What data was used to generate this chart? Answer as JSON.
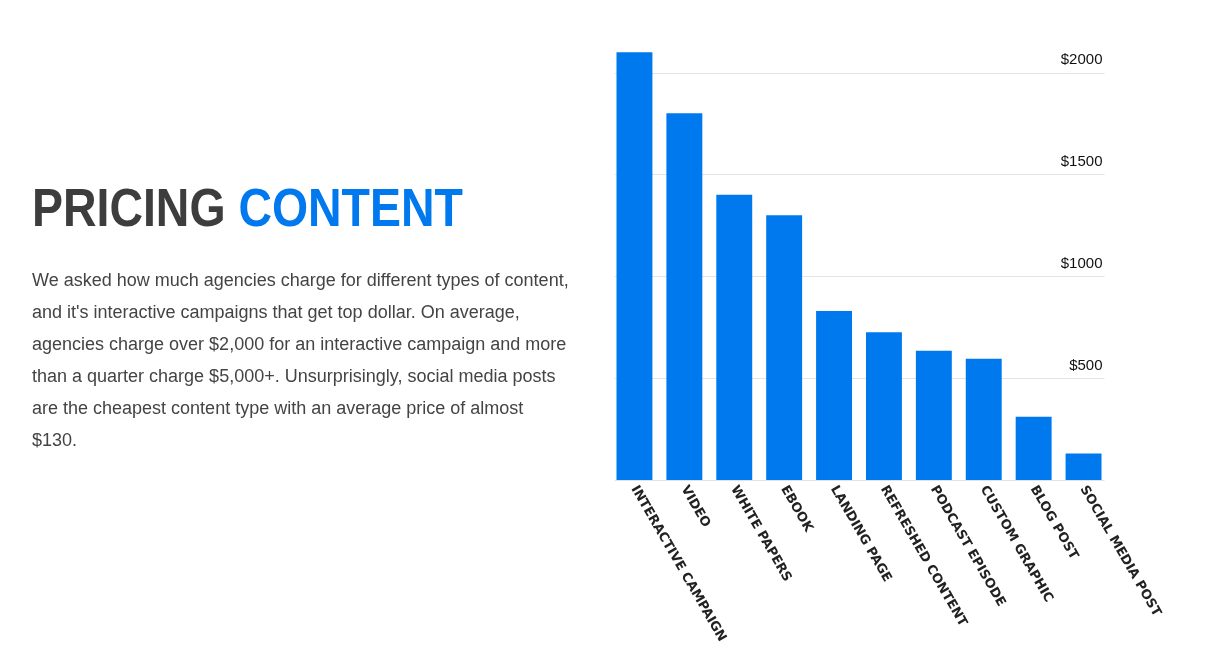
{
  "chart_data": {
    "type": "bar",
    "title": "PRICING CONTENT",
    "annotations": [
      "We asked how much agencies charge for different types of content, and it's interactive campaigns that get top dollar. On average, agencies charge over $2,000 for an interactive campaign and more than a quarter charge $5,000+. Unsurprisingly, social media posts are the cheapest content type with an average price of almost $130."
    ],
    "categories": [
      "INTERACTIVE CAMPAIGN",
      "VIDEO",
      "WHITE PAPERS",
      "EBOOK",
      "LANDING PAGE",
      "REFRESHED CONTENT",
      "PODCAST EPISODE",
      "CUSTOM GRAPHIC",
      "BLOG POST",
      "SOCIAL MEDIA POST"
    ],
    "values": [
      2100,
      1800,
      1400,
      1300,
      830,
      725,
      635,
      595,
      310,
      130
    ],
    "color": "#0078ee",
    "ylim": [
      0,
      2150
    ],
    "yticks": [
      {
        "value": 0,
        "label": null
      },
      {
        "value": 500,
        "label": "$500"
      },
      {
        "value": 1000,
        "label": "$1000"
      },
      {
        "value": 1500,
        "label": "$1500"
      },
      {
        "value": 2000,
        "label": "$2000"
      }
    ],
    "grid": "y"
  }
}
